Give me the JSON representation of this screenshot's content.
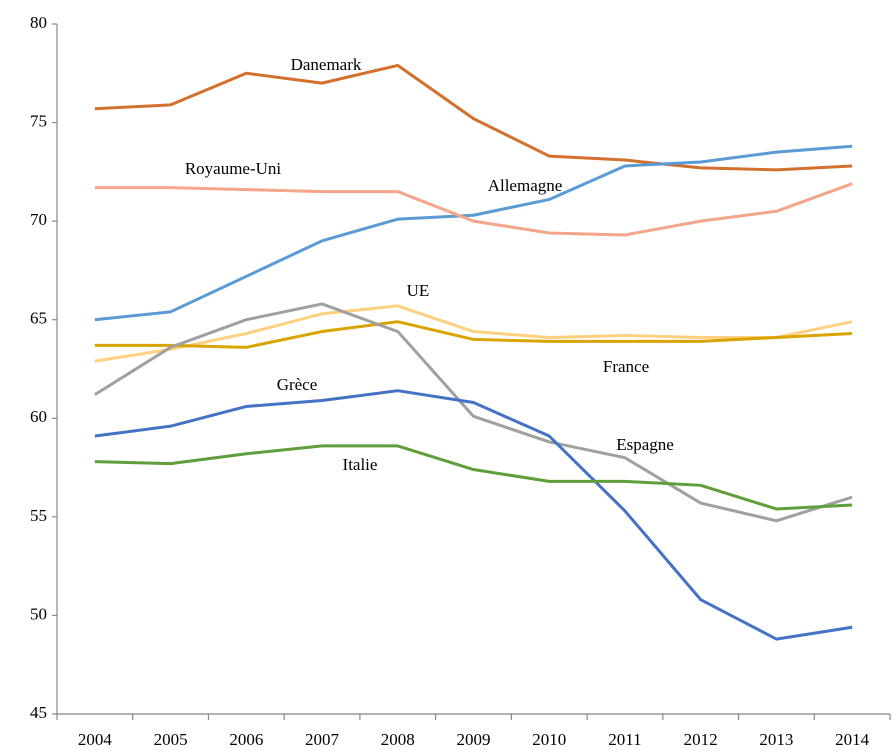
{
  "chart_data": {
    "type": "line",
    "categories": [
      "2004",
      "2005",
      "2006",
      "2007",
      "2008",
      "2009",
      "2010",
      "2011",
      "2012",
      "2013",
      "2014"
    ],
    "ylim": [
      45,
      80
    ],
    "yticks": [
      45,
      50,
      55,
      60,
      65,
      70,
      75,
      80
    ],
    "grid": false,
    "series": [
      {
        "name": "Danemark",
        "color": "#d4702e",
        "values": [
          75.7,
          75.9,
          77.5,
          77.0,
          77.9,
          75.2,
          73.3,
          73.1,
          72.7,
          72.6,
          72.8
        ]
      },
      {
        "name": "Allemagne",
        "color": "#5b9bd5",
        "values": [
          65.0,
          65.4,
          67.2,
          69.0,
          70.1,
          70.3,
          71.1,
          72.8,
          73.0,
          73.5,
          73.8
        ]
      },
      {
        "name": "Royaume-Uni",
        "color": "#f4a58a",
        "values": [
          71.7,
          71.7,
          71.6,
          71.5,
          71.5,
          70.0,
          69.4,
          69.3,
          70.0,
          70.5,
          71.9
        ]
      },
      {
        "name": "UE",
        "color": "#ffd07f",
        "values": [
          62.9,
          63.5,
          64.3,
          65.3,
          65.7,
          64.4,
          64.1,
          64.2,
          64.1,
          64.1,
          64.9
        ]
      },
      {
        "name": "France",
        "color": "#d9a400",
        "values": [
          63.7,
          63.7,
          63.6,
          64.4,
          64.9,
          64.0,
          63.9,
          63.9,
          63.9,
          64.1,
          64.3
        ]
      },
      {
        "name": "Espagne",
        "color": "#a0a0a0",
        "values": [
          61.2,
          63.6,
          65.0,
          65.8,
          64.4,
          60.1,
          58.8,
          58.0,
          55.7,
          54.8,
          56.0
        ]
      },
      {
        "name": "Grèce",
        "color": "#4472c4",
        "values": [
          59.1,
          59.6,
          60.6,
          60.9,
          61.4,
          60.8,
          59.1,
          55.3,
          50.8,
          48.8,
          49.4
        ]
      },
      {
        "name": "Italie",
        "color": "#5f9e3a",
        "values": [
          57.8,
          57.7,
          58.2,
          58.6,
          58.6,
          57.4,
          56.8,
          56.8,
          56.6,
          55.4,
          55.6
        ]
      }
    ]
  }
}
